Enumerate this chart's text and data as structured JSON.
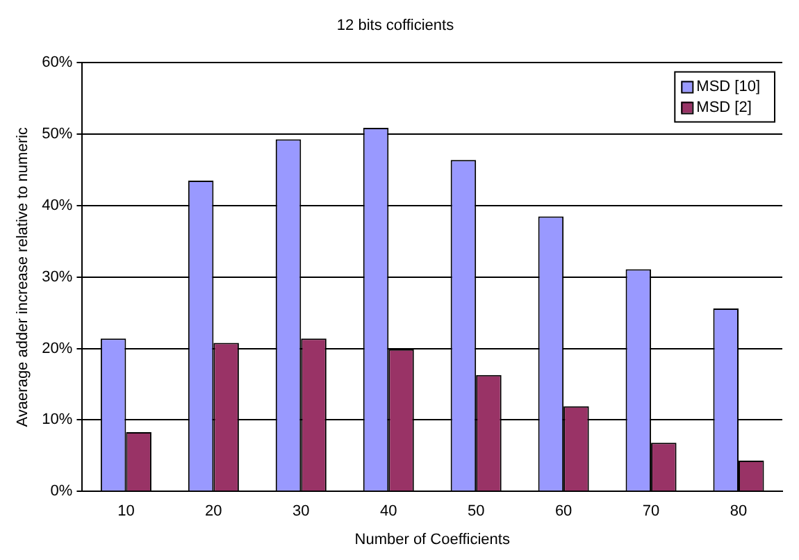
{
  "chart_data": {
    "type": "bar",
    "title": "12 bits cofficients",
    "xlabel": "Number of Coefficients",
    "ylabel": "Avaerage adder increase relative to numeric",
    "categories": [
      "10",
      "20",
      "30",
      "40",
      "50",
      "60",
      "70",
      "80"
    ],
    "series": [
      {
        "name": "MSD [10]",
        "color": "#9999ff",
        "values": [
          21.4,
          43.5,
          49.3,
          50.9,
          46.4,
          38.5,
          31.1,
          25.6
        ]
      },
      {
        "name": "MSD [2]",
        "color": "#993366",
        "values": [
          8.3,
          20.8,
          21.4,
          19.9,
          16.3,
          11.9,
          6.8,
          4.3
        ]
      }
    ],
    "ylim": [
      0,
      60
    ],
    "yticks": [
      {
        "value": 0,
        "label": "0%"
      },
      {
        "value": 10,
        "label": "10%"
      },
      {
        "value": 20,
        "label": "20%"
      },
      {
        "value": 30,
        "label": "30%"
      },
      {
        "value": 40,
        "label": "40%"
      },
      {
        "value": 50,
        "label": "50%"
      },
      {
        "value": 60,
        "label": "60%"
      }
    ],
    "grid": "y",
    "legend": "top right"
  }
}
